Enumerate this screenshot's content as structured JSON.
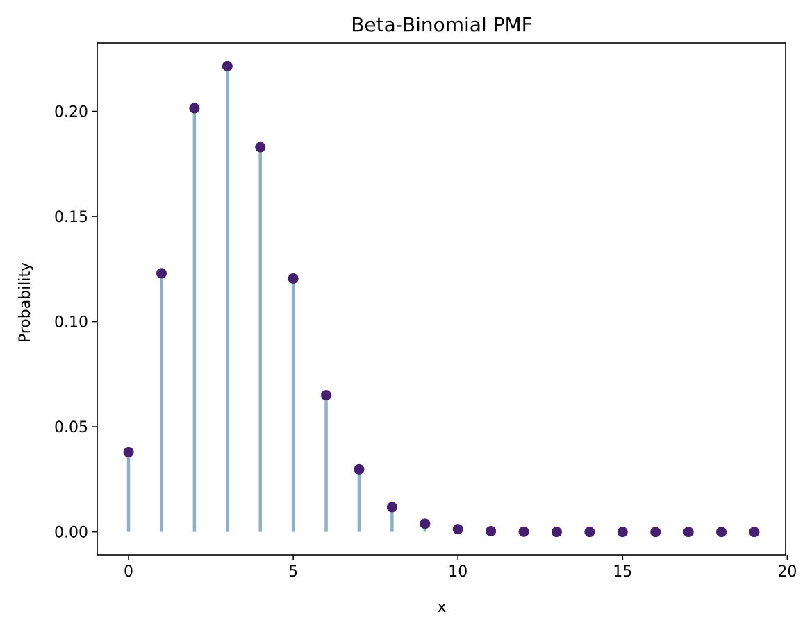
{
  "chart_data": {
    "type": "scatter",
    "title": "Beta-Binomial PMF",
    "xlabel": "x",
    "ylabel": "Probability",
    "xlim": [
      -0.95,
      19.95
    ],
    "ylim": [
      -0.011,
      0.2325
    ],
    "x_ticks": [
      0,
      5,
      10,
      15,
      20
    ],
    "x_tick_labels": [
      "0",
      "5",
      "10",
      "15",
      "20"
    ],
    "y_ticks": [
      0.0,
      0.05,
      0.1,
      0.15,
      0.2
    ],
    "y_tick_labels": [
      "0.00",
      "0.05",
      "0.10",
      "0.15",
      "0.20"
    ],
    "grid": false,
    "legend": null,
    "series": [
      {
        "x": [
          0,
          1,
          2,
          3,
          4,
          5,
          6,
          7,
          8,
          9,
          10,
          11,
          12,
          13,
          14,
          15,
          16,
          17,
          18,
          19
        ],
        "values": [
          0.038,
          0.123,
          0.2015,
          0.2215,
          0.183,
          0.1205,
          0.065,
          0.0298,
          0.0118,
          0.0039,
          0.0013,
          0.0004,
          0.0001,
          0.0,
          0.0,
          0.0,
          0.0,
          0.0,
          0.0,
          0.0
        ]
      }
    ],
    "colors": {
      "stem": "#8fb0c4",
      "marker": "#45206e",
      "axes": "#000000"
    }
  }
}
